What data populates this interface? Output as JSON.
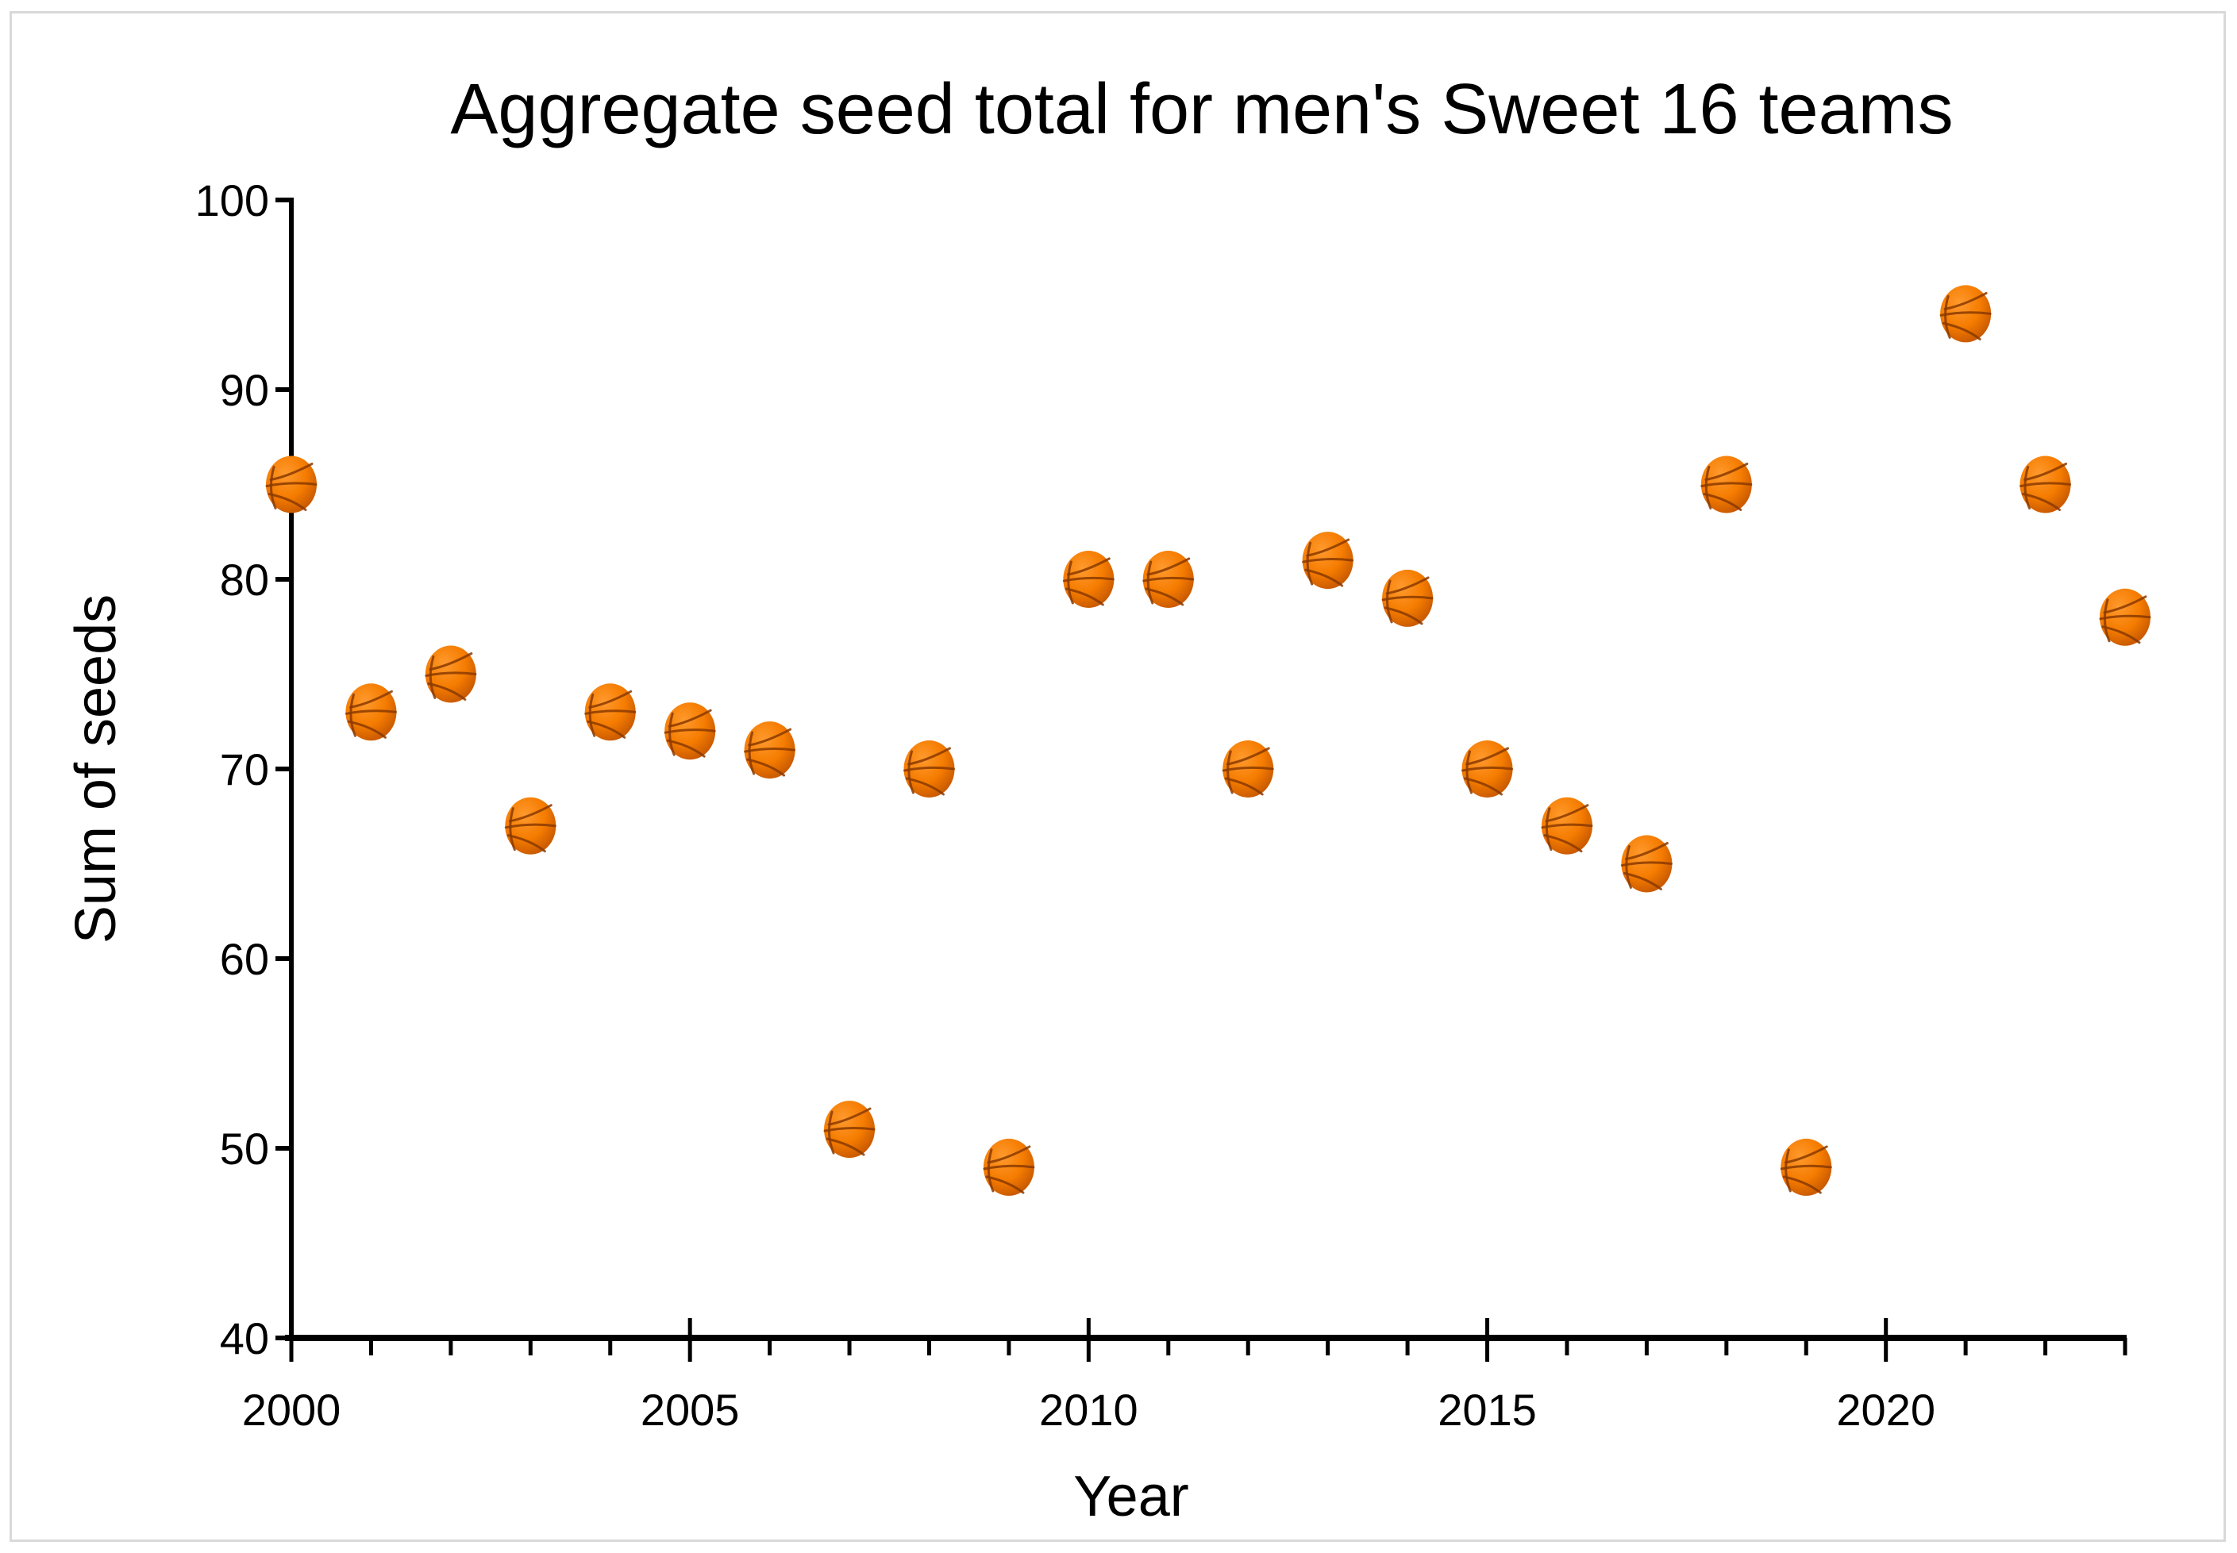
{
  "chart_data": {
    "type": "scatter",
    "title": "Aggregate seed total for men's Sweet 16 teams",
    "xlabel": "Year",
    "ylabel": "Sum of seeds",
    "xlim": [
      2000,
      2023
    ],
    "ylim": [
      40,
      100
    ],
    "x_major_ticks": [
      2000,
      2005,
      2010,
      2015,
      2020
    ],
    "x_minor_step": 1,
    "y_ticks": [
      40,
      50,
      60,
      70,
      80,
      90,
      100
    ],
    "grid": false,
    "legend": "none",
    "marker": "basketball",
    "marker_color": "#F57C00",
    "series": [
      {
        "name": "Sum of seeds",
        "points": [
          {
            "x": 2000,
            "y": 85
          },
          {
            "x": 2001,
            "y": 73
          },
          {
            "x": 2002,
            "y": 75
          },
          {
            "x": 2003,
            "y": 67
          },
          {
            "x": 2004,
            "y": 73
          },
          {
            "x": 2005,
            "y": 72
          },
          {
            "x": 2006,
            "y": 71
          },
          {
            "x": 2007,
            "y": 51
          },
          {
            "x": 2008,
            "y": 70
          },
          {
            "x": 2009,
            "y": 49
          },
          {
            "x": 2010,
            "y": 80
          },
          {
            "x": 2011,
            "y": 80
          },
          {
            "x": 2012,
            "y": 70
          },
          {
            "x": 2013,
            "y": 81
          },
          {
            "x": 2014,
            "y": 79
          },
          {
            "x": 2015,
            "y": 70
          },
          {
            "x": 2016,
            "y": 67
          },
          {
            "x": 2017,
            "y": 65
          },
          {
            "x": 2018,
            "y": 85
          },
          {
            "x": 2019,
            "y": 49
          },
          {
            "x": 2021,
            "y": 94
          },
          {
            "x": 2022,
            "y": 85
          },
          {
            "x": 2023,
            "y": 78
          }
        ]
      }
    ]
  }
}
